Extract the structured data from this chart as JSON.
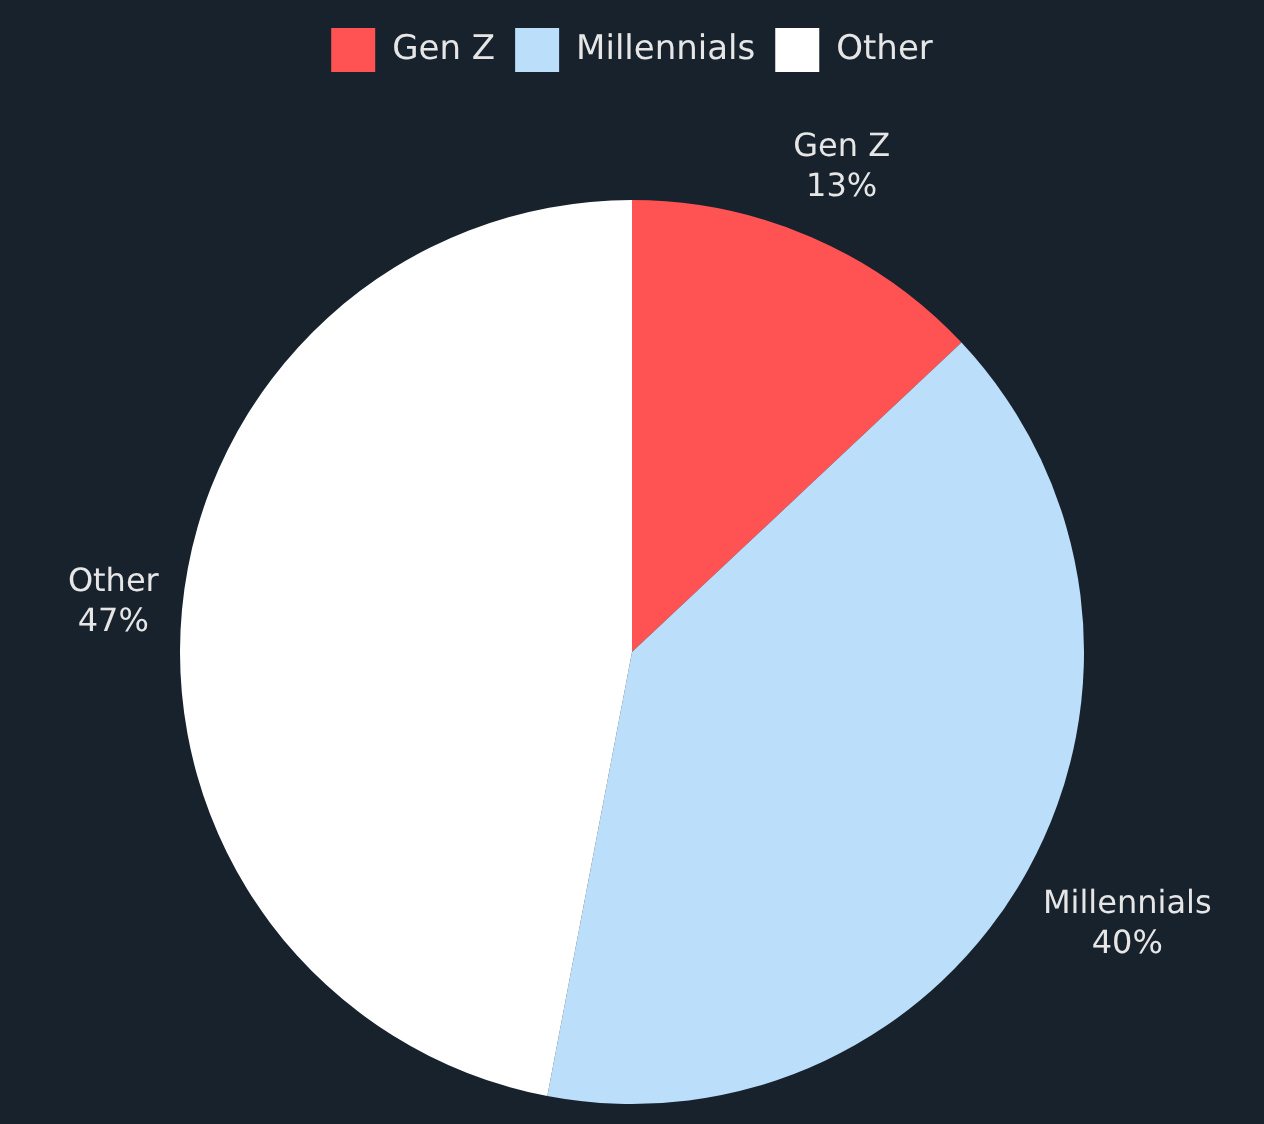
{
  "chart_data": {
    "type": "pie",
    "categories": [
      "Gen Z",
      "Millennials",
      "Other"
    ],
    "values": [
      13,
      40,
      47
    ],
    "value_labels": [
      "13%",
      "40%",
      "47%"
    ],
    "colors": [
      "#ff5252",
      "#bbdefb",
      "#ffffff"
    ],
    "legend": "top"
  }
}
